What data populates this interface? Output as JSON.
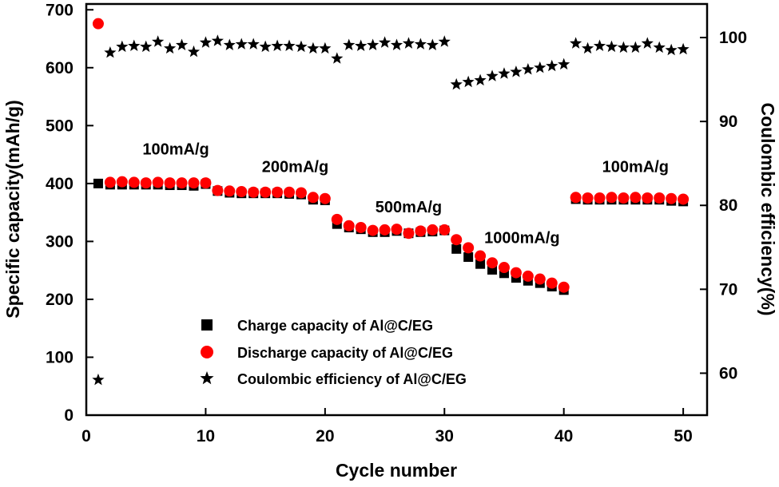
{
  "chart_data": {
    "type": "scatter",
    "xlabel": "Cycle number",
    "ylabel_left": "Specific capacity(mAh/g)",
    "ylabel_right": "Coulombic efficiency(%)",
    "xlim": [
      0,
      52
    ],
    "ylim_left": [
      0,
      710
    ],
    "ylim_right": [
      55,
      104
    ],
    "xticks": [
      0,
      10,
      20,
      30,
      40,
      50
    ],
    "yticks_left": [
      0,
      100,
      200,
      300,
      400,
      500,
      600,
      700
    ],
    "yticks_right": [
      60,
      70,
      80,
      90,
      100
    ],
    "rate_labels": [
      {
        "text": "100mA/g",
        "cycle": 7.5,
        "capacity": 450
      },
      {
        "text": "200mA/g",
        "cycle": 17.5,
        "capacity": 420
      },
      {
        "text": "500mA/g",
        "cycle": 27,
        "capacity": 350
      },
      {
        "text": "1000mA/g",
        "cycle": 36.5,
        "capacity": 297
      },
      {
        "text": "100mA/g",
        "cycle": 46,
        "capacity": 420
      }
    ],
    "series": [
      {
        "name": "Charge capacity of Al@C/EG",
        "marker": "square",
        "color": "#000000",
        "axis": "left",
        "x": [
          1,
          2,
          3,
          4,
          5,
          6,
          7,
          8,
          9,
          10,
          11,
          12,
          13,
          14,
          15,
          16,
          17,
          18,
          19,
          20,
          21,
          22,
          23,
          24,
          25,
          26,
          27,
          28,
          29,
          30,
          31,
          32,
          33,
          34,
          35,
          36,
          37,
          38,
          39,
          40,
          41,
          42,
          43,
          44,
          45,
          46,
          47,
          48,
          49,
          50
        ],
        "values": [
          400,
          398,
          398,
          398,
          398,
          398,
          397,
          397,
          396,
          399,
          387,
          384,
          383,
          383,
          383,
          383,
          382,
          381,
          372,
          371,
          330,
          324,
          321,
          316,
          316,
          318,
          314,
          316,
          317,
          319,
          287,
          273,
          261,
          251,
          245,
          237,
          232,
          228,
          222,
          216,
          373,
          372,
          372,
          372,
          372,
          372,
          372,
          372,
          370,
          369
        ]
      },
      {
        "name": "Discharge capacity of Al@C/EG",
        "marker": "circle",
        "color": "#ff0000",
        "axis": "left",
        "x": [
          1,
          2,
          3,
          4,
          5,
          6,
          7,
          8,
          9,
          10,
          11,
          12,
          13,
          14,
          15,
          16,
          17,
          18,
          19,
          20,
          21,
          22,
          23,
          24,
          25,
          26,
          27,
          28,
          29,
          30,
          31,
          32,
          33,
          34,
          35,
          36,
          37,
          38,
          39,
          40,
          41,
          42,
          43,
          44,
          45,
          46,
          47,
          48,
          49,
          50
        ],
        "values": [
          676,
          402,
          403,
          402,
          401,
          402,
          401,
          401,
          401,
          401,
          388,
          387,
          386,
          385,
          385,
          385,
          385,
          384,
          376,
          374,
          338,
          327,
          324,
          319,
          320,
          321,
          314,
          318,
          320,
          320,
          303,
          289,
          275,
          263,
          255,
          246,
          240,
          235,
          228,
          221,
          376,
          375,
          375,
          376,
          375,
          376,
          375,
          375,
          374,
          373
        ]
      },
      {
        "name": "Coulombic efficiency of Al@C/EG",
        "marker": "star",
        "color": "#000000",
        "axis": "right",
        "x": [
          1,
          2,
          3,
          4,
          5,
          6,
          7,
          8,
          9,
          10,
          11,
          12,
          13,
          14,
          15,
          16,
          17,
          18,
          19,
          20,
          21,
          22,
          23,
          24,
          25,
          26,
          27,
          28,
          29,
          30,
          31,
          32,
          33,
          34,
          35,
          36,
          37,
          38,
          39,
          40,
          41,
          42,
          43,
          44,
          45,
          46,
          47,
          48,
          49,
          50
        ],
        "values": [
          59.2,
          98.2,
          98.9,
          99.0,
          98.9,
          99.5,
          98.7,
          99.1,
          98.3,
          99.4,
          99.6,
          99.1,
          99.2,
          99.2,
          98.9,
          99.0,
          99.0,
          98.9,
          98.7,
          98.7,
          97.5,
          99.1,
          99.0,
          99.1,
          99.4,
          99.1,
          99.3,
          99.2,
          99.1,
          99.5,
          94.4,
          94.7,
          94.9,
          95.4,
          95.7,
          95.9,
          96.2,
          96.4,
          96.6,
          96.8,
          99.3,
          98.7,
          99.0,
          98.9,
          98.8,
          98.8,
          99.3,
          98.8,
          98.5,
          98.6
        ]
      }
    ]
  }
}
